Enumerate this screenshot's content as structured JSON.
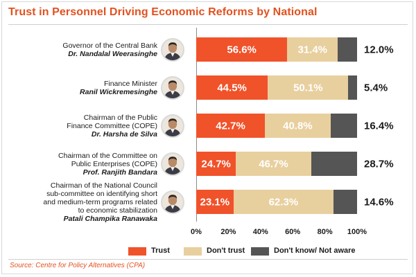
{
  "title": "Trust in Personnel Driving Economic Reforms by National",
  "colors": {
    "trust": "#f0522a",
    "dont_trust": "#e8cf9e",
    "dont_know": "#555555",
    "title": "#e2511f"
  },
  "people": [
    {
      "role_lines": [
        "Governor of the Central Bank"
      ],
      "name": "Dr. Nandalal Weerasinghe",
      "icon": "portrait-icon"
    },
    {
      "role_lines": [
        "Finance Minister"
      ],
      "name": "Ranil Wickremesinghe",
      "icon": "portrait-icon"
    },
    {
      "role_lines": [
        "Chairman of the Public",
        "Finance Committee (COPE)"
      ],
      "name": "Dr. Harsha de Silva",
      "icon": "portrait-icon"
    },
    {
      "role_lines": [
        "Chairman of the Committee on",
        "Public Enterprises (COPE)"
      ],
      "name": "Prof. Ranjith Bandara",
      "icon": "portrait-icon"
    },
    {
      "role_lines": [
        "Chairman of the National Council",
        "sub-committee on identifying short",
        "and medium-term programs related",
        "to economic stabilization"
      ],
      "name": "Patali Champika Ranawaka",
      "icon": "portrait-icon"
    }
  ],
  "chart_data": {
    "type": "bar",
    "orientation": "horizontal",
    "stacked": true,
    "title": "Trust in Personnel Driving Economic Reforms by National",
    "categories": [
      "Governor of the Central Bank Dr. Nandalal Weerasinghe",
      "Finance Minister Ranil Wickremesinghe",
      "Chairman of the Public Finance Committee (COPE) Dr. Harsha de Silva",
      "Chairman of the Committee on Public Enterprises (COPE) Prof. Ranjith Bandara",
      "Chairman of the National Council sub-committee on identifying short and medium-term programs related to economic stabilization Patali Champika Ranawaka"
    ],
    "series": [
      {
        "name": "Trust",
        "values": [
          56.6,
          44.5,
          42.7,
          24.7,
          23.1
        ],
        "labels": [
          "56.6%",
          "44.5%",
          "42.7%",
          "24.7%",
          "23.1%"
        ]
      },
      {
        "name": "Don't trust",
        "values": [
          31.4,
          50.1,
          40.8,
          46.7,
          62.3
        ],
        "labels": [
          "31.4%",
          "50.1%",
          "40.8%",
          "46.7%",
          "62.3%"
        ]
      },
      {
        "name": "Don't know/ Not aware",
        "values": [
          12.0,
          5.4,
          16.4,
          28.7,
          14.6
        ],
        "labels": [
          "12.0%",
          "5.4%",
          "16.4%",
          "28.7%",
          "14.6%"
        ]
      }
    ],
    "xlim": [
      0,
      100
    ],
    "x_ticks": [
      "0%",
      "20%",
      "40%",
      "60%",
      "80%",
      "100%"
    ],
    "legend": [
      "Trust",
      "Don't trust",
      "Don't know/ Not aware"
    ],
    "legend_position": "bottom",
    "grid": false
  },
  "source_text": "Source:  Centre for Policy Alternatives (CPA)"
}
